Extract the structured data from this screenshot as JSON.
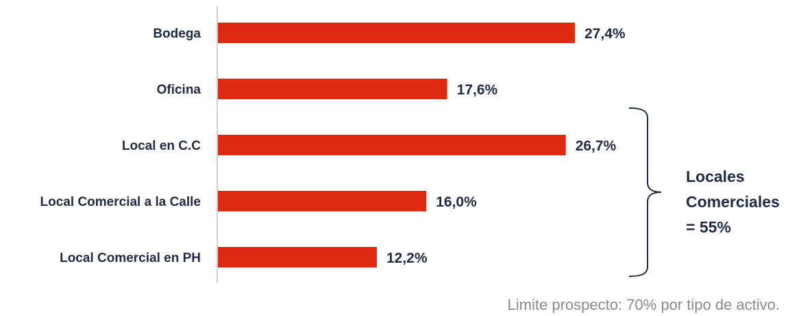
{
  "chart_data": {
    "type": "bar",
    "orientation": "horizontal",
    "categories": [
      "Bodega",
      "Oficina",
      "Local en C.C",
      "Local Comercial a la Calle",
      "Local Comercial en PH"
    ],
    "values": [
      27.4,
      17.6,
      26.7,
      16.0,
      12.2
    ],
    "value_labels": [
      "27,4%",
      "17,6%",
      "26,7%",
      "16,0%",
      "12,2%"
    ],
    "xlim": [
      0,
      30
    ],
    "grid": false,
    "bar_color": "#de2b12",
    "text_color": "#1f2a44",
    "annotation": {
      "lines": [
        "Locales",
        "Comerciales",
        "=  55%"
      ],
      "groups": [
        "Local en C.C",
        "Local Comercial a la Calle",
        "Local Comercial en PH"
      ]
    },
    "footnote": "Limite prospecto: 70% por tipo de activo."
  }
}
